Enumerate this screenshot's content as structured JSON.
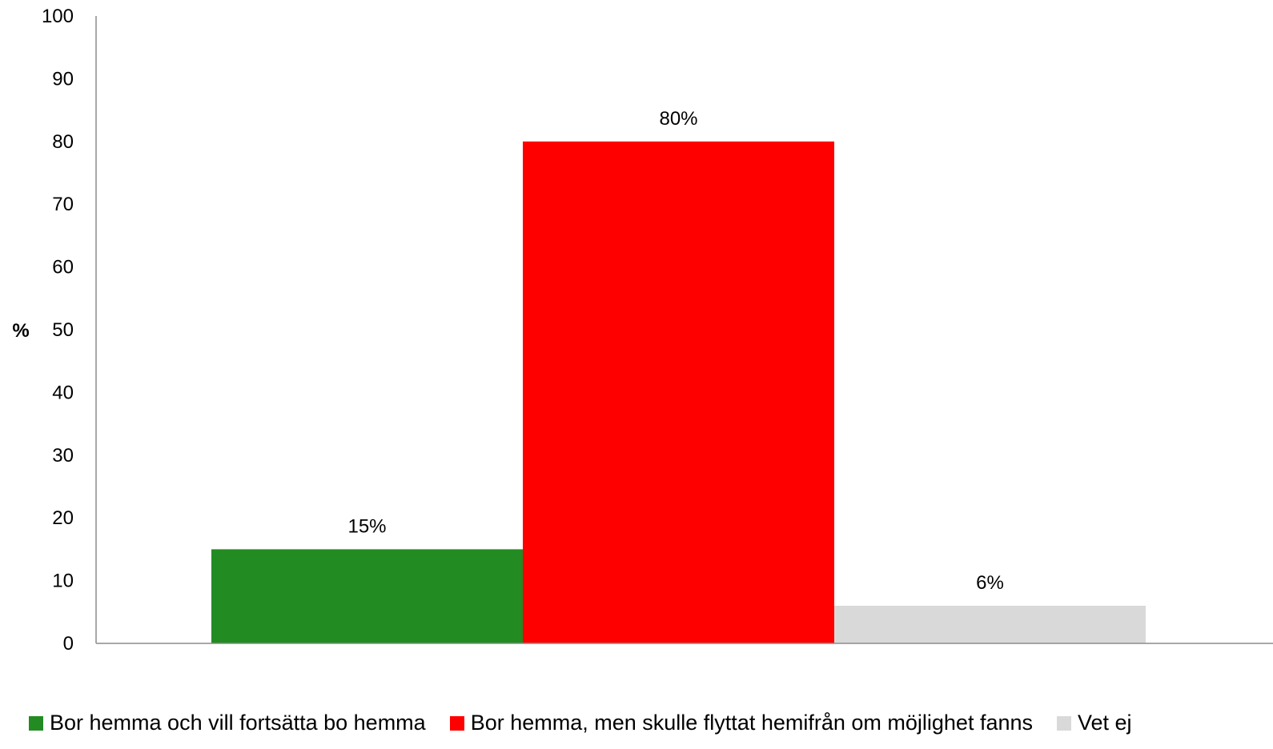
{
  "chart_data": {
    "type": "bar",
    "title": "",
    "xlabel": "",
    "ylabel": "%",
    "ylim": [
      0,
      100
    ],
    "yticks": [
      "0",
      "10",
      "20",
      "30",
      "40",
      "50",
      "60",
      "70",
      "80",
      "90",
      "100"
    ],
    "grid": false,
    "legend_position": "bottom",
    "categories": [
      ""
    ],
    "series": [
      {
        "name": "Bor hemma och vill fortsätta bo hemma",
        "values": [
          15
        ],
        "label": "15%",
        "color": "#228B22"
      },
      {
        "name": "Bor hemma, men skulle flyttat hemifrån om möjlighet fanns",
        "values": [
          80
        ],
        "label": "80%",
        "color": "#FF0000"
      },
      {
        "name": "Vet ej",
        "values": [
          6
        ],
        "label": "6%",
        "color": "#D9D9D9"
      }
    ]
  }
}
